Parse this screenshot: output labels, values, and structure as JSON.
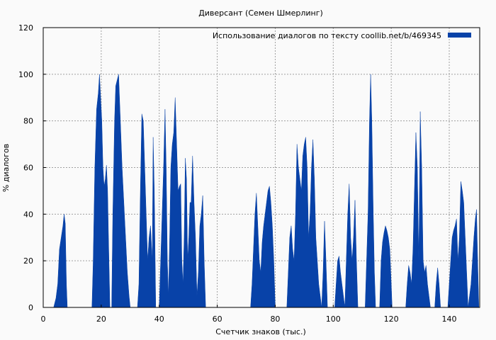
{
  "chart_data": {
    "type": "area",
    "title": "Диверсант (Семен Шмерлинг)",
    "xlabel": "Счетчик знаков (тыс.)",
    "ylabel": "% диалогов",
    "xlim": [
      0,
      150.5
    ],
    "ylim": [
      0,
      120
    ],
    "xticks": [
      0,
      20,
      40,
      60,
      80,
      100,
      120,
      140
    ],
    "yticks": [
      0,
      20,
      40,
      60,
      80,
      100,
      120
    ],
    "grid": true,
    "legend_position": "top-right",
    "series": [
      {
        "name": "Использование диалогов по тексту  coollib.net/b/469345",
        "color": "#0842a8",
        "points": [
          [
            3.6,
            0
          ],
          [
            4.4,
            4
          ],
          [
            5.0,
            10
          ],
          [
            5.6,
            25
          ],
          [
            6.2,
            30
          ],
          [
            6.8,
            35
          ],
          [
            7.2,
            40
          ],
          [
            7.6,
            36
          ],
          [
            8.0,
            10
          ],
          [
            8.3,
            0
          ],
          [
            16.8,
            0
          ],
          [
            17.2,
            18
          ],
          [
            17.8,
            60
          ],
          [
            18.4,
            85
          ],
          [
            19.0,
            92
          ],
          [
            19.4,
            100
          ],
          [
            19.8,
            90
          ],
          [
            20.2,
            80
          ],
          [
            20.6,
            60
          ],
          [
            21.0,
            52
          ],
          [
            21.4,
            55
          ],
          [
            21.8,
            61
          ],
          [
            22.2,
            50
          ],
          [
            22.5,
            30
          ],
          [
            23.0,
            0
          ],
          [
            23.6,
            0
          ],
          [
            24.0,
            40
          ],
          [
            24.6,
            80
          ],
          [
            25.0,
            95
          ],
          [
            25.6,
            98
          ],
          [
            26.0,
            100
          ],
          [
            26.6,
            80
          ],
          [
            27.2,
            60
          ],
          [
            27.8,
            45
          ],
          [
            28.4,
            30
          ],
          [
            29.0,
            15
          ],
          [
            29.6,
            5
          ],
          [
            30.0,
            0
          ],
          [
            32.5,
            0
          ],
          [
            33.0,
            10
          ],
          [
            33.5,
            50
          ],
          [
            34.0,
            83
          ],
          [
            34.5,
            80
          ],
          [
            35.0,
            60
          ],
          [
            35.5,
            40
          ],
          [
            36.0,
            20
          ],
          [
            36.5,
            30
          ],
          [
            37.0,
            35
          ],
          [
            37.6,
            20
          ],
          [
            37.9,
            73
          ],
          [
            38.3,
            50
          ],
          [
            38.8,
            0
          ],
          [
            40.0,
            0
          ],
          [
            40.5,
            20
          ],
          [
            41.0,
            40
          ],
          [
            41.5,
            60
          ],
          [
            42.0,
            85
          ],
          [
            42.4,
            60
          ],
          [
            42.8,
            20
          ],
          [
            43.2,
            5
          ],
          [
            43.6,
            30
          ],
          [
            44.0,
            60
          ],
          [
            44.5,
            70
          ],
          [
            45.0,
            75
          ],
          [
            45.5,
            90
          ],
          [
            46.0,
            70
          ],
          [
            46.5,
            50
          ],
          [
            47.0,
            52
          ],
          [
            47.4,
            53
          ],
          [
            47.8,
            20
          ],
          [
            48.2,
            10
          ],
          [
            48.6,
            30
          ],
          [
            49.0,
            64
          ],
          [
            49.4,
            55
          ],
          [
            49.8,
            20
          ],
          [
            50.2,
            30
          ],
          [
            50.6,
            45
          ],
          [
            51.0,
            45
          ],
          [
            51.5,
            65
          ],
          [
            52.0,
            45
          ],
          [
            52.5,
            30
          ],
          [
            53.0,
            5
          ],
          [
            53.5,
            15
          ],
          [
            54.0,
            35
          ],
          [
            54.5,
            40
          ],
          [
            55.0,
            48
          ],
          [
            55.5,
            20
          ],
          [
            56.0,
            0
          ],
          [
            71.5,
            0
          ],
          [
            72.0,
            10
          ],
          [
            72.5,
            25
          ],
          [
            73.0,
            40
          ],
          [
            73.5,
            49
          ],
          [
            74.0,
            35
          ],
          [
            74.5,
            20
          ],
          [
            75.0,
            15
          ],
          [
            75.5,
            28
          ],
          [
            76.0,
            35
          ],
          [
            76.5,
            40
          ],
          [
            77.0,
            45
          ],
          [
            77.5,
            50
          ],
          [
            78.0,
            52
          ],
          [
            78.5,
            45
          ],
          [
            79.0,
            35
          ],
          [
            79.5,
            20
          ],
          [
            80.0,
            0
          ],
          [
            84.0,
            0
          ],
          [
            84.5,
            15
          ],
          [
            85.0,
            30
          ],
          [
            85.5,
            35
          ],
          [
            86.0,
            25
          ],
          [
            86.5,
            20
          ],
          [
            87.0,
            40
          ],
          [
            87.5,
            70
          ],
          [
            88.0,
            60
          ],
          [
            88.5,
            55
          ],
          [
            89.0,
            50
          ],
          [
            89.5,
            65
          ],
          [
            90.0,
            70
          ],
          [
            90.5,
            73
          ],
          [
            91.0,
            60
          ],
          [
            91.5,
            30
          ],
          [
            92.0,
            40
          ],
          [
            92.5,
            60
          ],
          [
            93.0,
            72
          ],
          [
            93.5,
            55
          ],
          [
            94.0,
            30
          ],
          [
            94.5,
            20
          ],
          [
            95.0,
            10
          ],
          [
            95.5,
            5
          ],
          [
            96.0,
            0
          ],
          [
            96.5,
            15
          ],
          [
            97.0,
            37
          ],
          [
            97.5,
            20
          ],
          [
            98.0,
            0
          ],
          [
            100.5,
            0
          ],
          [
            101.0,
            10
          ],
          [
            101.5,
            20
          ],
          [
            102.0,
            22
          ],
          [
            102.5,
            15
          ],
          [
            103.0,
            10
          ],
          [
            103.5,
            5
          ],
          [
            104.0,
            0
          ],
          [
            104.5,
            20
          ],
          [
            105.0,
            40
          ],
          [
            105.5,
            53
          ],
          [
            106.0,
            30
          ],
          [
            106.5,
            20
          ],
          [
            107.0,
            30
          ],
          [
            107.5,
            46
          ],
          [
            108.0,
            20
          ],
          [
            108.5,
            0
          ],
          [
            111.0,
            0
          ],
          [
            111.5,
            20
          ],
          [
            112.0,
            40
          ],
          [
            112.5,
            80
          ],
          [
            112.9,
            100
          ],
          [
            113.3,
            80
          ],
          [
            113.8,
            40
          ],
          [
            114.2,
            15
          ],
          [
            114.6,
            0
          ],
          [
            116.0,
            0
          ],
          [
            116.5,
            20
          ],
          [
            117.0,
            28
          ],
          [
            117.5,
            32
          ],
          [
            118.0,
            35
          ],
          [
            118.5,
            33
          ],
          [
            119.0,
            30
          ],
          [
            119.5,
            25
          ],
          [
            120.0,
            10
          ],
          [
            120.3,
            0
          ],
          [
            125.0,
            0
          ],
          [
            125.5,
            10
          ],
          [
            126.0,
            18
          ],
          [
            126.5,
            15
          ],
          [
            127.0,
            10
          ],
          [
            127.5,
            25
          ],
          [
            128.0,
            50
          ],
          [
            128.5,
            75
          ],
          [
            129.0,
            60
          ],
          [
            129.5,
            20
          ],
          [
            130.0,
            84
          ],
          [
            130.5,
            60
          ],
          [
            131.0,
            20
          ],
          [
            131.5,
            15
          ],
          [
            132.0,
            18
          ],
          [
            132.5,
            10
          ],
          [
            133.0,
            5
          ],
          [
            133.5,
            0
          ],
          [
            135.0,
            0
          ],
          [
            135.5,
            10
          ],
          [
            136.0,
            17
          ],
          [
            136.5,
            10
          ],
          [
            137.0,
            0
          ],
          [
            139.5,
            0
          ],
          [
            140.0,
            10
          ],
          [
            140.5,
            20
          ],
          [
            141.0,
            30
          ],
          [
            141.5,
            33
          ],
          [
            142.0,
            35
          ],
          [
            142.5,
            38
          ],
          [
            143.0,
            20
          ],
          [
            143.5,
            30
          ],
          [
            144.0,
            54
          ],
          [
            144.5,
            50
          ],
          [
            145.0,
            45
          ],
          [
            145.5,
            30
          ],
          [
            146.0,
            15
          ],
          [
            146.5,
            0
          ],
          [
            147.0,
            5
          ],
          [
            147.5,
            10
          ],
          [
            148.0,
            20
          ],
          [
            148.5,
            30
          ],
          [
            149.0,
            38
          ],
          [
            149.4,
            42
          ],
          [
            149.8,
            20
          ],
          [
            150.2,
            0
          ]
        ]
      }
    ]
  }
}
